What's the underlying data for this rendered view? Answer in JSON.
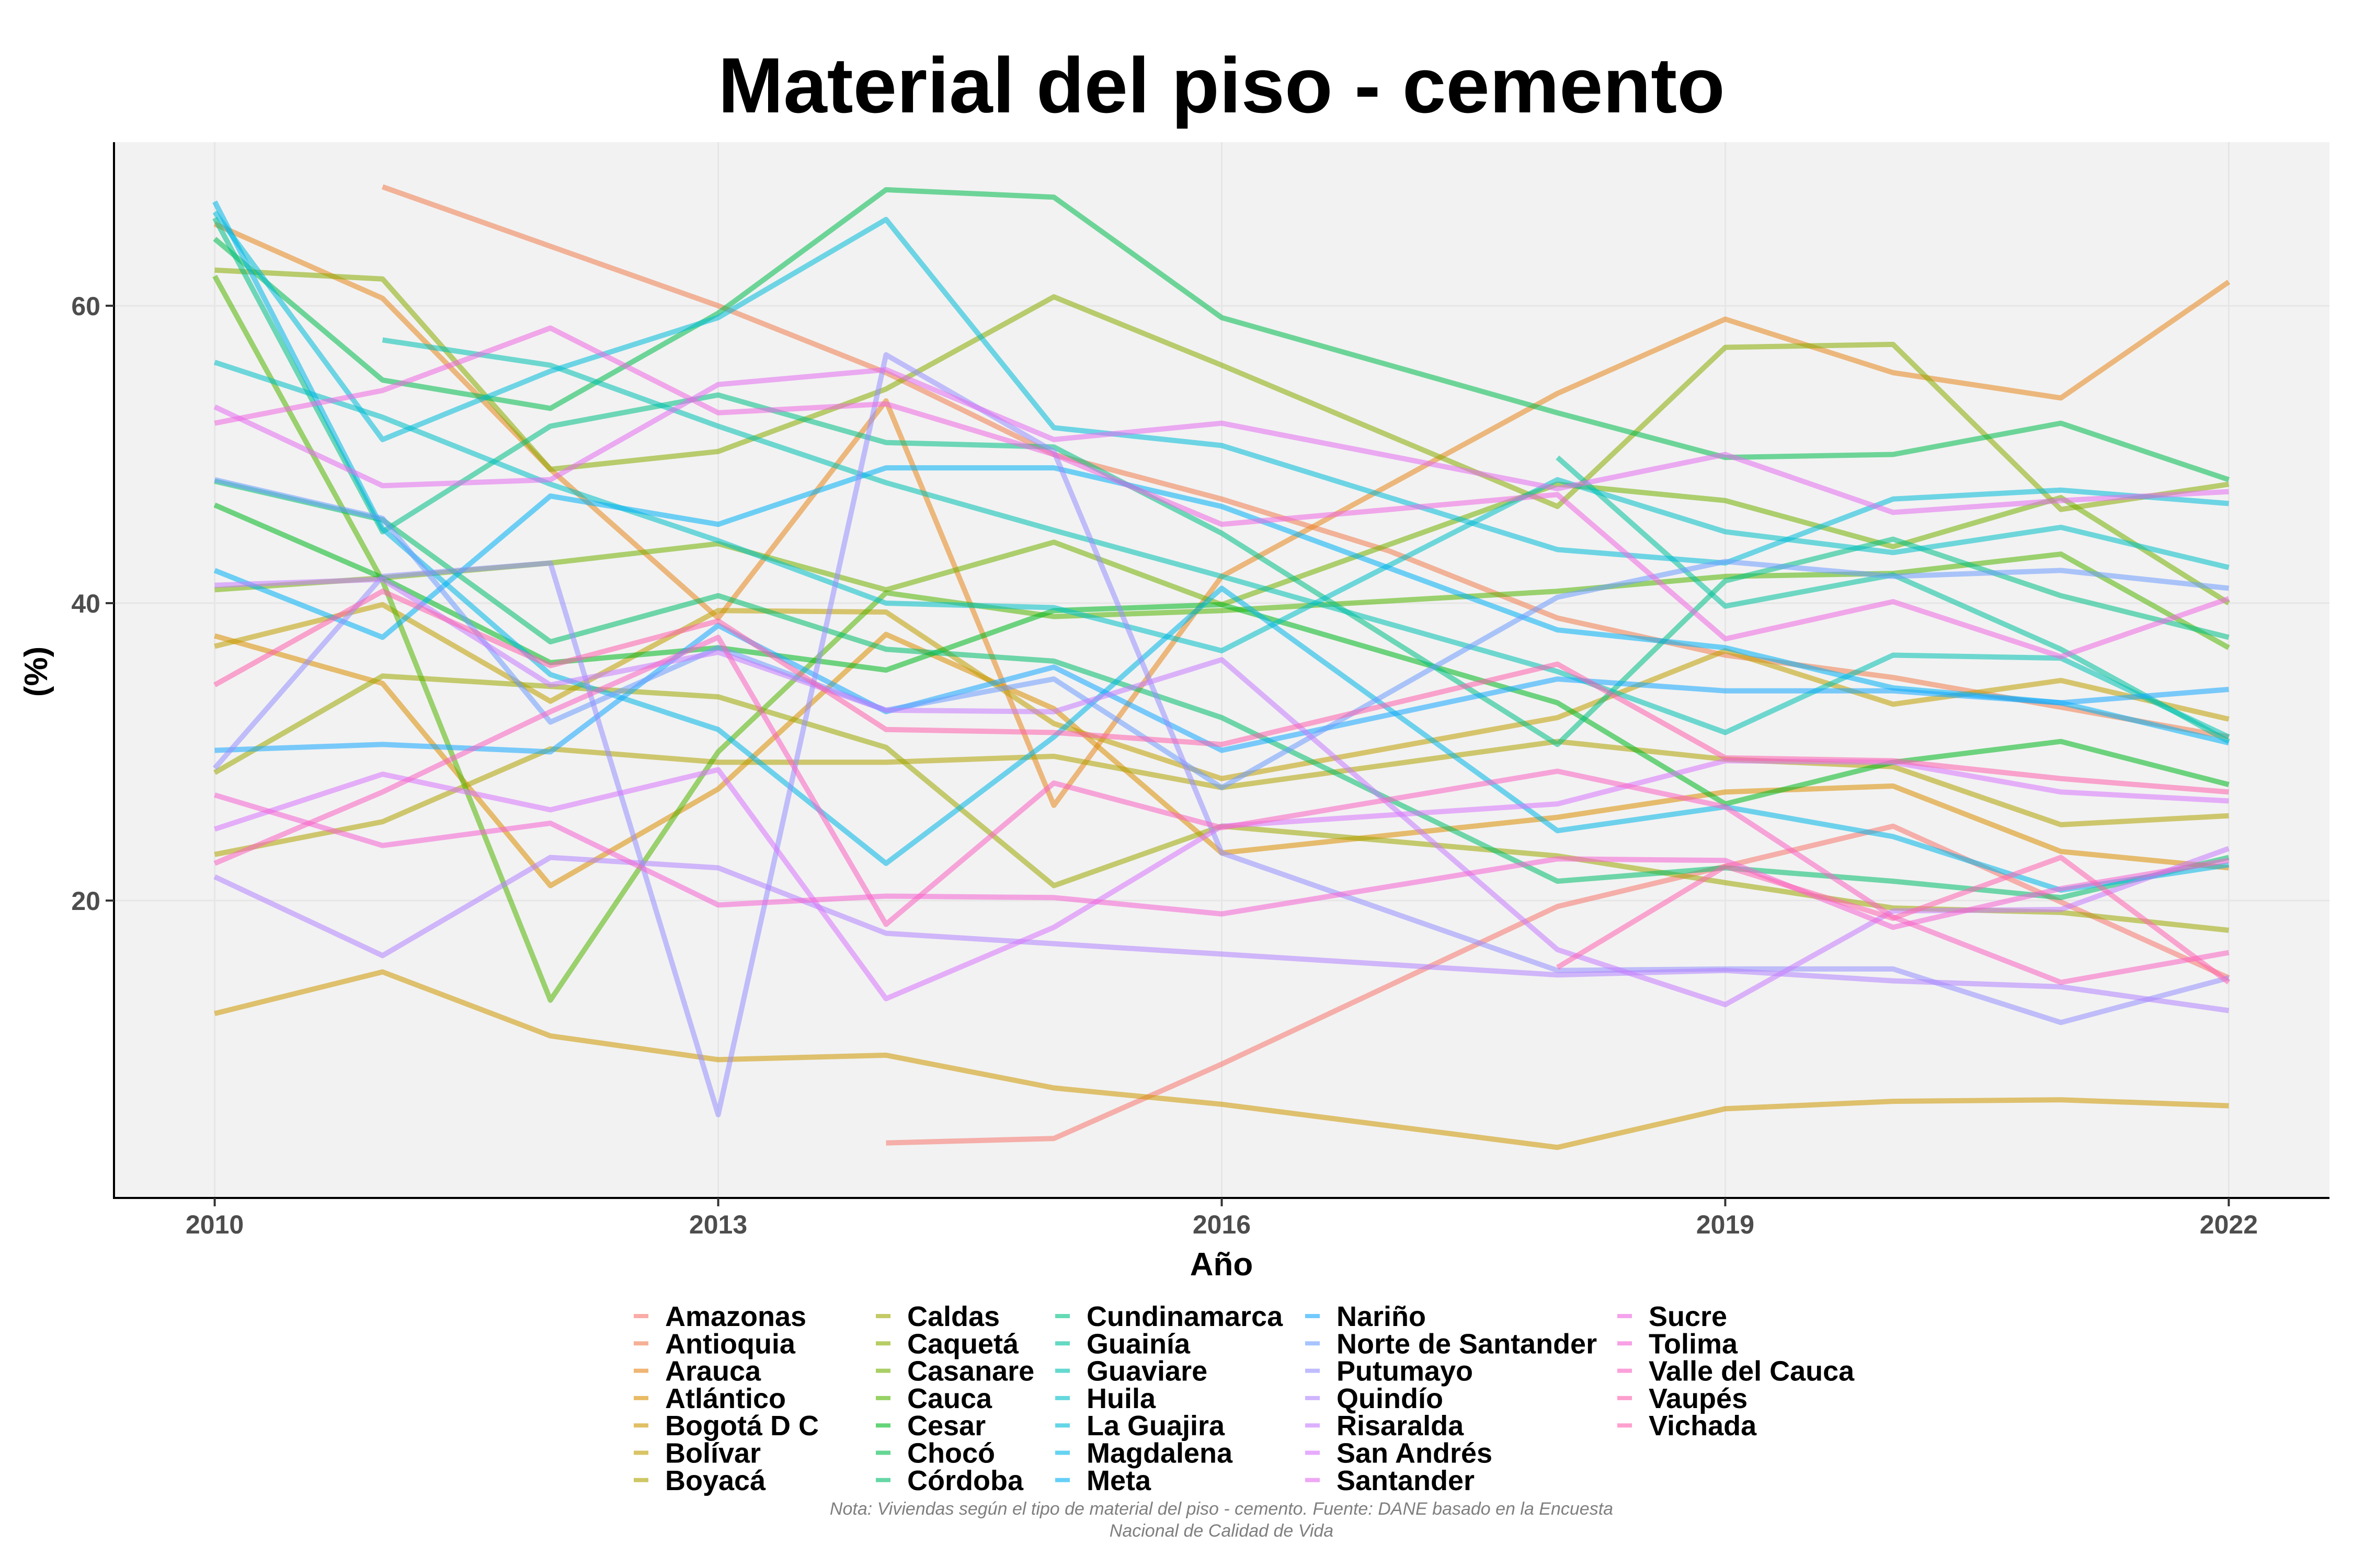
{
  "chart_data": {
    "type": "line",
    "title": "Material del piso - cemento",
    "xlabel": "Año",
    "ylabel": "(%)",
    "x_ticks": [
      2010,
      2013,
      2016,
      2019,
      2022
    ],
    "x_tick_labels": [
      "2010",
      "2013",
      "2016",
      "2019",
      "2022"
    ],
    "y_ticks": [
      20,
      40,
      60
    ],
    "y_tick_labels": [
      "20",
      "40",
      "60"
    ],
    "xlim": [
      2009.4,
      2022.6
    ],
    "ylim": [
      0,
      71
    ],
    "grid": true,
    "legend_position": "bottom",
    "note_line1": "Nota: Viviendas según el tipo de material del piso - cemento. Fuente: DANE basado en la Encuesta",
    "note_line2": "Nacional de Calidad de Vida",
    "series": [
      {
        "name": "Amazonas",
        "color": "#F8766D",
        "x": [
          2014,
          2015,
          2016,
          2018,
          2020,
          2022
        ],
        "values": [
          3.7,
          4.0,
          9.0,
          19.6,
          25.0,
          14.8
        ]
      },
      {
        "name": "Antioquia",
        "color": "#F07E4F",
        "x": [
          2011,
          2013,
          2014,
          2015,
          2016,
          2017,
          2018,
          2019,
          2020,
          2021,
          2022
        ],
        "values": [
          68.0,
          60.0,
          55.5,
          50.0,
          47.0,
          43.5,
          39.0,
          36.5,
          35.0,
          33.0,
          31.0
        ]
      },
      {
        "name": "Arauca",
        "color": "#E7861B",
        "x": [
          2010,
          2011,
          2012,
          2013,
          2014,
          2015,
          2016,
          2018,
          2019,
          2020,
          2021,
          2022
        ],
        "values": [
          65.5,
          60.5,
          49.0,
          39.0,
          53.6,
          26.4,
          41.8,
          54.1,
          59.1,
          55.5,
          53.8,
          61.6
        ]
      },
      {
        "name": "Atlántico",
        "color": "#DB8E00",
        "x": [
          2010,
          2011,
          2012,
          2013,
          2014,
          2015,
          2016,
          2018,
          2019,
          2020,
          2021,
          2022
        ],
        "values": [
          37.8,
          34.6,
          21.0,
          27.5,
          37.9,
          32.9,
          23.2,
          25.6,
          27.3,
          27.7,
          23.3,
          22.2
        ]
      },
      {
        "name": "Bogotá D C",
        "color": "#CE9700",
        "x": [
          2010,
          2011,
          2012,
          2013,
          2014,
          2015,
          2016,
          2018,
          2019,
          2020,
          2021,
          2022
        ],
        "values": [
          12.4,
          15.2,
          10.9,
          9.3,
          9.6,
          7.4,
          6.3,
          3.4,
          6.0,
          6.5,
          6.6,
          6.2
        ]
      },
      {
        "name": "Bolívar",
        "color": "#BF9E00",
        "x": [
          2010,
          2011,
          2012,
          2013,
          2014,
          2015,
          2016,
          2018,
          2019,
          2020,
          2021,
          2022
        ],
        "values": [
          37.1,
          39.9,
          33.4,
          39.5,
          39.4,
          31.9,
          28.2,
          32.3,
          36.8,
          33.2,
          34.8,
          32.2
        ]
      },
      {
        "name": "Boyacá",
        "color": "#AEA200",
        "x": [
          2010,
          2011,
          2012,
          2013,
          2014,
          2015,
          2016,
          2018,
          2019,
          2020,
          2021,
          2022
        ],
        "values": [
          23.1,
          25.3,
          30.2,
          29.3,
          29.3,
          29.7,
          27.6,
          30.7,
          29.5,
          29.0,
          25.1,
          25.7
        ]
      },
      {
        "name": "Caldas",
        "color": "#9DA700",
        "x": [
          2010,
          2011,
          2012,
          2013,
          2014,
          2015,
          2016,
          2018,
          2019,
          2020,
          2021,
          2022
        ],
        "values": [
          28.6,
          35.1,
          34.4,
          33.7,
          30.3,
          21.0,
          25.0,
          23.0,
          21.2,
          19.5,
          19.2,
          18.0
        ]
      },
      {
        "name": "Caquetá",
        "color": "#88AC00",
        "x": [
          2010,
          2011,
          2012,
          2013,
          2014,
          2015,
          2016,
          2018,
          2019,
          2020,
          2021,
          2022
        ],
        "values": [
          62.4,
          61.8,
          49.0,
          50.2,
          54.4,
          60.6,
          56.0,
          46.5,
          57.2,
          57.4,
          46.3,
          48.0
        ]
      },
      {
        "name": "Casanare",
        "color": "#72B000",
        "x": [
          2010,
          2011,
          2012,
          2013,
          2014,
          2015,
          2016,
          2018,
          2019,
          2020,
          2021,
          2022
        ],
        "values": [
          40.9,
          41.7,
          42.7,
          44.0,
          40.9,
          44.1,
          39.9,
          48.0,
          46.9,
          43.8,
          47.1,
          40.0
        ]
      },
      {
        "name": "Cauca",
        "color": "#52B500",
        "x": [
          2010,
          2011,
          2012,
          2013,
          2014,
          2015,
          2016,
          2018,
          2019,
          2020,
          2021,
          2022
        ],
        "values": [
          62.0,
          41.5,
          13.3,
          30.0,
          40.7,
          39.1,
          39.5,
          40.8,
          41.8,
          42.0,
          43.3,
          37.0
        ]
      },
      {
        "name": "Cesar",
        "color": "#00B81F",
        "x": [
          2010,
          2011,
          2012,
          2013,
          2014,
          2015,
          2016,
          2018,
          2019,
          2020,
          2021,
          2022
        ],
        "values": [
          46.6,
          41.7,
          36.0,
          37.0,
          35.5,
          39.5,
          39.9,
          33.3,
          26.5,
          29.3,
          30.7,
          27.8
        ]
      },
      {
        "name": "Chocó",
        "color": "#00BB4E",
        "x": [
          2010,
          2011,
          2012,
          2013,
          2014,
          2015,
          2016,
          2018,
          2019,
          2020,
          2021,
          2022
        ],
        "values": [
          64.5,
          55.0,
          53.1,
          59.5,
          67.8,
          67.3,
          59.2,
          52.8,
          49.8,
          50.0,
          52.1,
          48.3
        ]
      },
      {
        "name": "Córdoba",
        "color": "#00BE6C",
        "x": [
          2010,
          2011,
          2012,
          2013,
          2014,
          2015,
          2016,
          2018,
          2019,
          2020,
          2021,
          2022
        ],
        "values": [
          48.2,
          45.6,
          37.4,
          40.5,
          36.9,
          36.1,
          32.3,
          21.3,
          22.2,
          21.3,
          20.2,
          22.9
        ]
      },
      {
        "name": "Cundinamarca",
        "color": "#00C085",
        "x": [
          2010,
          2011,
          2012,
          2013,
          2014,
          2015,
          2016,
          2018,
          2019,
          2020,
          2021,
          2022
        ],
        "values": [
          65.9,
          44.8,
          51.9,
          54.0,
          50.8,
          50.5,
          44.7,
          30.5,
          41.5,
          44.3,
          40.5,
          37.7
        ]
      },
      {
        "name": "Guainía",
        "color": "#00C19C",
        "x": [
          2018,
          2019,
          2020,
          2021,
          2022
        ],
        "values": [
          49.8,
          39.8,
          41.9,
          36.9,
          30.7
        ]
      },
      {
        "name": "Guaviare",
        "color": "#00C1B2",
        "x": [
          2011,
          2012,
          2013,
          2014,
          2015,
          2016,
          2018,
          2019,
          2020,
          2021,
          2022
        ],
        "values": [
          57.7,
          56.0,
          51.9,
          48.1,
          44.9,
          41.8,
          35.4,
          31.3,
          36.5,
          36.3,
          31.0
        ]
      },
      {
        "name": "Huila",
        "color": "#00BFC7",
        "x": [
          2010,
          2011,
          2012,
          2013,
          2014,
          2015,
          2016,
          2018,
          2019,
          2020,
          2021,
          2022
        ],
        "values": [
          56.2,
          52.5,
          48.0,
          44.2,
          40.0,
          39.7,
          36.8,
          48.3,
          44.8,
          43.4,
          45.1,
          42.4
        ]
      },
      {
        "name": "La Guajira",
        "color": "#00BCD8",
        "x": [
          2010,
          2011,
          2012,
          2013,
          2014,
          2015,
          2016,
          2018,
          2019,
          2020,
          2021,
          2022
        ],
        "values": [
          66.3,
          51.0,
          55.6,
          59.2,
          65.8,
          51.8,
          50.6,
          43.6,
          42.7,
          47.0,
          47.6,
          46.7
        ]
      },
      {
        "name": "Magdalena",
        "color": "#00B7E8",
        "x": [
          2010,
          2011,
          2012,
          2013,
          2014,
          2015,
          2016,
          2018,
          2019,
          2020,
          2021,
          2022
        ],
        "values": [
          67.0,
          45.0,
          35.2,
          31.5,
          22.5,
          31.0,
          41.0,
          24.7,
          26.3,
          24.3,
          20.7,
          22.4
        ]
      },
      {
        "name": "Meta",
        "color": "#00B0F6",
        "x": [
          2010,
          2011,
          2012,
          2013,
          2014,
          2015,
          2016,
          2018,
          2019,
          2020,
          2021,
          2022
        ],
        "values": [
          42.2,
          37.7,
          47.2,
          45.3,
          49.1,
          49.1,
          46.5,
          38.2,
          37.0,
          34.3,
          33.3,
          30.6
        ]
      },
      {
        "name": "Nariño",
        "color": "#14A8FF",
        "x": [
          2010,
          2011,
          2012,
          2013,
          2014,
          2015,
          2016,
          2018,
          2019,
          2020,
          2021,
          2022
        ],
        "values": [
          30.1,
          30.5,
          30.0,
          38.5,
          32.7,
          35.7,
          30.1,
          34.9,
          34.1,
          34.1,
          33.3,
          34.2
        ]
      },
      {
        "name": "Norte de Santander",
        "color": "#6E9DFF",
        "x": [
          2010,
          2011,
          2012,
          2013,
          2014,
          2015,
          2016,
          2018,
          2019,
          2020,
          2021,
          2022
        ],
        "values": [
          48.3,
          45.7,
          32.0,
          37.0,
          32.8,
          34.9,
          27.6,
          40.4,
          42.8,
          41.8,
          42.2,
          41.0
        ]
      },
      {
        "name": "Putumayo",
        "color": "#9590FF",
        "x": [
          2010,
          2011,
          2012,
          2013,
          2014,
          2015,
          2016,
          2018,
          2019,
          2020,
          2021,
          2022
        ],
        "values": [
          28.9,
          41.8,
          42.7,
          5.6,
          56.7,
          50.2,
          23.2,
          15.3,
          15.4,
          15.4,
          11.8,
          14.8
        ]
      },
      {
        "name": "Quindío",
        "color": "#B284FF",
        "x": [
          2010,
          2011,
          2012,
          2013,
          2014,
          2015,
          2016,
          2018,
          2019,
          2020,
          2021,
          2022
        ],
        "values": [
          21.6,
          16.3,
          22.9,
          22.2,
          17.8,
          17.1,
          16.4,
          15.0,
          15.3,
          14.6,
          14.2,
          12.6
        ]
      },
      {
        "name": "Risaralda",
        "color": "#C77CFF",
        "x": [
          2010,
          2011,
          2012,
          2013,
          2014,
          2015,
          2016,
          2018,
          2019,
          2020,
          2021,
          2022
        ],
        "values": [
          41.2,
          41.6,
          34.5,
          36.7,
          32.8,
          32.7,
          36.2,
          16.7,
          13.0,
          19.3,
          19.4,
          23.5
        ]
      },
      {
        "name": "San Andrés",
        "color": "#D874FD",
        "x": [
          2010,
          2011,
          2012,
          2013,
          2014,
          2015,
          2016,
          2018,
          2019,
          2020,
          2021,
          2022
        ],
        "values": [
          24.8,
          28.5,
          26.1,
          28.8,
          13.4,
          18.2,
          25.0,
          26.5,
          29.4,
          29.3,
          27.3,
          26.7
        ]
      },
      {
        "name": "Santander",
        "color": "#E46EF0",
        "x": [
          2010,
          2011,
          2012,
          2013,
          2014,
          2015,
          2016,
          2018,
          2019,
          2020,
          2021,
          2022
        ],
        "values": [
          53.2,
          47.9,
          48.3,
          54.7,
          55.7,
          51.0,
          52.1,
          47.7,
          50.0,
          46.1,
          46.9,
          47.5
        ]
      },
      {
        "name": "Sucre",
        "color": "#EE67E2",
        "x": [
          2010,
          2011,
          2012,
          2013,
          2014,
          2015,
          2016,
          2018,
          2019,
          2020,
          2021,
          2022
        ],
        "values": [
          52.1,
          54.3,
          58.5,
          52.8,
          53.4,
          50.0,
          45.3,
          47.3,
          37.6,
          40.1,
          36.4,
          40.3
        ]
      },
      {
        "name": "Tolima",
        "color": "#F563D4",
        "x": [
          2010,
          2011,
          2012,
          2013,
          2014,
          2015,
          2016,
          2018,
          2019,
          2020,
          2021,
          2022
        ],
        "values": [
          27.1,
          23.7,
          25.2,
          19.7,
          20.3,
          20.2,
          19.1,
          22.8,
          22.7,
          18.2,
          20.8,
          22.7
        ]
      },
      {
        "name": "Valle del Cauca",
        "color": "#FA62C2",
        "x": [
          2010,
          2011,
          2012,
          2013,
          2014,
          2015,
          2016,
          2018,
          2019,
          2020,
          2021,
          2022
        ],
        "values": [
          22.5,
          27.3,
          32.7,
          37.7,
          18.4,
          27.9,
          24.9,
          28.7,
          26.3,
          18.9,
          14.5,
          16.5
        ]
      },
      {
        "name": "Vaupés",
        "color": "#FD61AD",
        "x": [
          2010,
          2011,
          2012,
          2013,
          2014,
          2015,
          2016,
          2018,
          2019,
          2020,
          2021,
          2022
        ],
        "values": [
          34.5,
          40.8,
          35.8,
          38.8,
          31.5,
          31.3,
          30.5,
          35.9,
          29.6,
          29.4,
          28.2,
          27.3
        ]
      },
      {
        "name": "Vichada",
        "color": "#FF64B0",
        "x": [
          2018,
          2019,
          2020,
          2021,
          2022
        ],
        "values": [
          15.5,
          22.3,
          18.8,
          22.9,
          14.5
        ]
      }
    ]
  }
}
